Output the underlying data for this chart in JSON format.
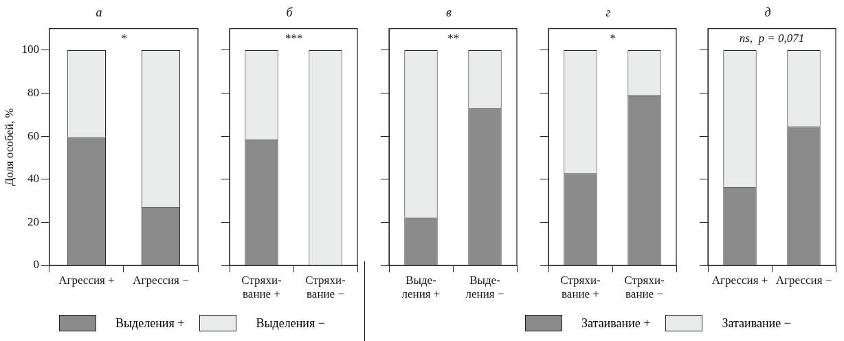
{
  "chart_data": [
    {
      "type": "bar",
      "title": "а",
      "ylabel": "Доля особей, %",
      "stacked": true,
      "categories": [
        "Агрессия +",
        "Агрессия −"
      ],
      "ylim": [
        0,
        110
      ],
      "yticks": [
        0,
        20,
        40,
        60,
        80,
        100
      ],
      "legend": "bottom",
      "annotations": [
        "*"
      ],
      "series": [
        {
          "name": "Выделения +",
          "color": "#8a8a8a",
          "values": [
            59.5,
            27.2
          ]
        },
        {
          "name": "Выделения −",
          "color": "#e9eaea",
          "values": [
            40.5,
            72.8
          ]
        }
      ]
    },
    {
      "type": "bar",
      "title": "б",
      "stacked": true,
      "categories": [
        "Стряхи-\nвание +",
        "Стряхи-\nвание −"
      ],
      "ylim": [
        0,
        110
      ],
      "yticks": [
        0,
        20,
        40,
        60,
        80,
        100
      ],
      "tick_labels": "x",
      "annotations": [
        "***"
      ],
      "series": [
        {
          "color": "#8a8a8a",
          "values": [
            58.5,
            0
          ]
        },
        {
          "color": "#e9eaea",
          "values": [
            41.5,
            100
          ]
        }
      ]
    },
    {
      "type": "bar",
      "title": "в",
      "stacked": true,
      "categories": [
        "Выде-\nления +",
        "Выде-\nления −"
      ],
      "ylim": [
        0,
        110
      ],
      "yticks": [
        0,
        20,
        40,
        60,
        80,
        100
      ],
      "tick_labels": "x",
      "annotations": [
        "**"
      ],
      "series": [
        {
          "color": "#8a8a8a",
          "values": [
            22.2,
            73.1
          ]
        },
        {
          "color": "#e9eaea",
          "values": [
            77.8,
            26.9
          ]
        }
      ]
    },
    {
      "type": "bar",
      "title": "г",
      "stacked": true,
      "categories": [
        "Стряхи-\nвание +",
        "Стряхи-\nвание −"
      ],
      "ylim": [
        0,
        110
      ],
      "yticks": [
        0,
        20,
        40,
        60,
        80,
        100
      ],
      "tick_labels": "x",
      "legend": "bottom",
      "annotations": [
        "*"
      ],
      "series": [
        {
          "name": "Затаивание +",
          "color": "#8a8a8a",
          "values": [
            42.7,
            78.9
          ]
        },
        {
          "name": "Затаивание −",
          "color": "#e9eaea",
          "values": [
            57.3,
            21.1
          ]
        }
      ]
    },
    {
      "type": "bar",
      "title": "д",
      "stacked": true,
      "categories": [
        "Агрессия +",
        "Агрессия −"
      ],
      "ylim": [
        0,
        110
      ],
      "yticks": [
        0,
        20,
        40,
        60,
        80,
        100
      ],
      "tick_labels": "x",
      "annotations": [
        "ns,  p = 0,071"
      ],
      "series": [
        {
          "color": "#8a8a8a",
          "values": [
            36.5,
            64.4
          ]
        },
        {
          "color": "#e9eaea",
          "values": [
            63.5,
            35.6
          ]
        }
      ]
    }
  ]
}
